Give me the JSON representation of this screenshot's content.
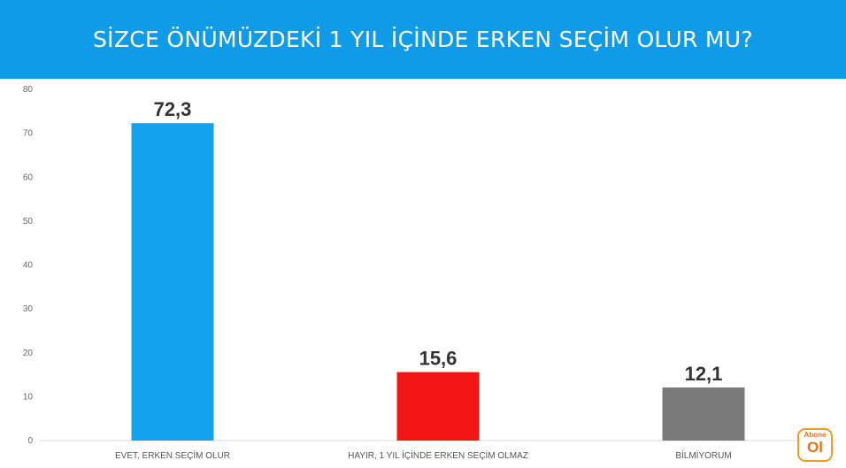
{
  "header": {
    "title": "SİZCE ÖNÜMÜZDEKİ 1 YIL İÇİNDE ERKEN SEÇİM OLUR MU?"
  },
  "logo": {
    "top_text": "Abone",
    "bottom_text": "Ol"
  },
  "chart_data": {
    "type": "bar",
    "title": "SİZCE ÖNÜMÜZDEKİ 1 YIL İÇİNDE ERKEN SEÇİM OLUR MU?",
    "categories": [
      "EVET, ERKEN SEÇİM OLUR",
      "HAYIR, 1 YIL İÇİNDE ERKEN SEÇİM OLMAZ",
      "BİLMİYORUM"
    ],
    "values": [
      72.3,
      15.6,
      12.1
    ],
    "value_labels": [
      "72,3",
      "15,6",
      "12,1"
    ],
    "colors": [
      "#12a2ee",
      "#f21515",
      "#7a7a7a"
    ],
    "ylim": [
      0,
      80
    ],
    "yticks": [
      0,
      10,
      20,
      30,
      40,
      50,
      60,
      70,
      80
    ],
    "xlabel": "",
    "ylabel": "",
    "grid": false,
    "legend": "none"
  }
}
